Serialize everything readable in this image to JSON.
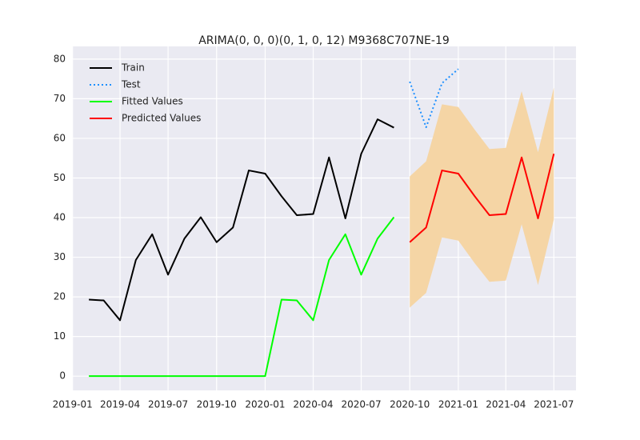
{
  "chart_data": {
    "type": "line",
    "title": "ARIMA(0, 0, 0)(0, 1, 0, 12) M9368C707NE-19",
    "xlim": [
      "2018-12-31",
      "2021-08-12"
    ],
    "xticks": [
      "2019-01",
      "2019-04",
      "2019-07",
      "2019-10",
      "2020-01",
      "2020-04",
      "2020-07",
      "2020-10",
      "2021-01",
      "2021-04",
      "2021-07"
    ],
    "ylim": [
      -3.6,
      83.2
    ],
    "yticks": [
      0,
      10,
      20,
      30,
      40,
      50,
      60,
      70,
      80
    ],
    "grid": true,
    "legend": "upper left",
    "series": [
      {
        "name": "Train",
        "color": "#000000",
        "style": "solid",
        "x": [
          "2019-02",
          "2019-03",
          "2019-04",
          "2019-05",
          "2019-06",
          "2019-07",
          "2019-08",
          "2019-09",
          "2019-10",
          "2019-11",
          "2019-12",
          "2020-01",
          "2020-02",
          "2020-03",
          "2020-04",
          "2020-05",
          "2020-06",
          "2020-07",
          "2020-08",
          "2020-09"
        ],
        "values": [
          19.3,
          19.1,
          14.1,
          29.3,
          35.8,
          25.6,
          34.7,
          40.1,
          33.8,
          37.5,
          51.9,
          51.1,
          45.4,
          40.6,
          40.9,
          55.2,
          39.8,
          56.1,
          64.8,
          62.7
        ]
      },
      {
        "name": "Test",
        "color": "#1e90ff",
        "style": "dotted",
        "x": [
          "2020-10",
          "2020-11",
          "2020-12",
          "2021-01"
        ],
        "values": [
          74.3,
          62.8,
          73.9,
          77.5
        ]
      },
      {
        "name": "Fitted Values",
        "color": "#00ff00",
        "style": "solid",
        "x": [
          "2019-02",
          "2019-03",
          "2019-04",
          "2019-05",
          "2019-06",
          "2019-07",
          "2019-08",
          "2019-09",
          "2019-10",
          "2019-11",
          "2019-12",
          "2020-01",
          "2020-02",
          "2020-03",
          "2020-04",
          "2020-05",
          "2020-06",
          "2020-07",
          "2020-08",
          "2020-09"
        ],
        "values": [
          0,
          0,
          0,
          0,
          0,
          0,
          0,
          0,
          0,
          0,
          0,
          0,
          19.3,
          19.1,
          14.1,
          29.3,
          35.8,
          25.6,
          34.7,
          40.1
        ]
      },
      {
        "name": "Predicted Values",
        "color": "#ff0000",
        "style": "solid",
        "x": [
          "2020-10",
          "2020-11",
          "2020-12",
          "2021-01",
          "2021-02",
          "2021-03",
          "2021-04",
          "2021-05",
          "2021-06",
          "2021-07"
        ],
        "values": [
          33.8,
          37.5,
          51.9,
          51.1,
          45.4,
          40.6,
          40.9,
          55.2,
          39.8,
          56.1
        ]
      }
    ],
    "band": {
      "color": "#f5d5a5",
      "x": [
        "2020-10",
        "2020-11",
        "2020-12",
        "2021-01",
        "2021-02",
        "2021-03",
        "2021-04",
        "2021-05",
        "2021-06",
        "2021-07"
      ],
      "lower": [
        17.3,
        21.0,
        35.0,
        34.2,
        28.5,
        23.8,
        24.1,
        38.3,
        23.0,
        39.5
      ],
      "upper": [
        50.4,
        54.2,
        68.6,
        67.9,
        62.2,
        57.3,
        57.6,
        71.9,
        56.5,
        72.8
      ]
    }
  }
}
